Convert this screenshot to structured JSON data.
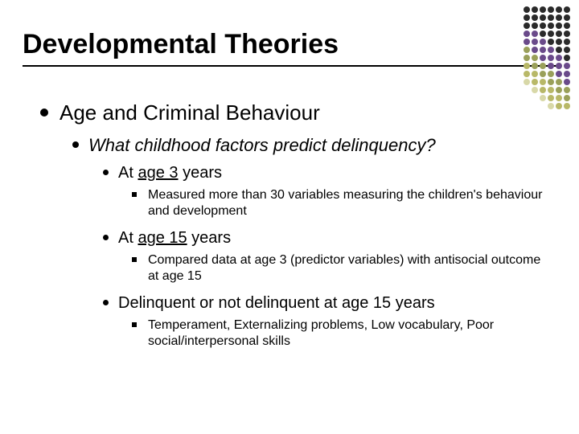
{
  "title": "Developmental Theories",
  "level1": {
    "text": "Age and Criminal Behaviour"
  },
  "level2": {
    "text": "What childhood factors predict delinquency?"
  },
  "items": [
    {
      "prefix": "At ",
      "underlined": "age 3",
      "suffix": " years",
      "sub": "Measured more than 30 variables measuring the children's behaviour and development"
    },
    {
      "prefix": "At ",
      "underlined": "age 15",
      "suffix": " years",
      "sub": "Compared data at age 3 (predictor variables) with antisocial outcome at age 15"
    },
    {
      "prefix": "Delinquent or not delinquent at age 15 years",
      "underlined": "",
      "suffix": "",
      "sub": "Temperament, Externalizing problems, Low vocabulary, Poor social/interpersonal skills"
    }
  ],
  "deco": {
    "colors": {
      "dk": "#2a2a2a",
      "pu": "#6a4a8a",
      "gr": "#9aa05a",
      "ol": "#b8b868",
      "lg": "#d8d8a8",
      "bg": "#ffffff"
    },
    "grid": [
      [
        "dk",
        "dk",
        "dk",
        "dk",
        "dk",
        "dk"
      ],
      [
        "dk",
        "dk",
        "dk",
        "dk",
        "dk",
        "dk"
      ],
      [
        "dk",
        "dk",
        "dk",
        "dk",
        "dk",
        "dk"
      ],
      [
        "pu",
        "pu",
        "dk",
        "dk",
        "dk",
        "dk"
      ],
      [
        "pu",
        "pu",
        "pu",
        "dk",
        "dk",
        "dk"
      ],
      [
        "gr",
        "pu",
        "pu",
        "pu",
        "dk",
        "dk"
      ],
      [
        "gr",
        "gr",
        "pu",
        "pu",
        "pu",
        "dk"
      ],
      [
        "ol",
        "gr",
        "gr",
        "pu",
        "pu",
        "pu"
      ],
      [
        "ol",
        "ol",
        "gr",
        "gr",
        "pu",
        "pu"
      ],
      [
        "lg",
        "ol",
        "ol",
        "gr",
        "gr",
        "pu"
      ],
      [
        "bg",
        "lg",
        "ol",
        "ol",
        "gr",
        "gr"
      ],
      [
        "bg",
        "bg",
        "lg",
        "ol",
        "ol",
        "gr"
      ],
      [
        "bg",
        "bg",
        "bg",
        "lg",
        "ol",
        "ol"
      ]
    ]
  }
}
